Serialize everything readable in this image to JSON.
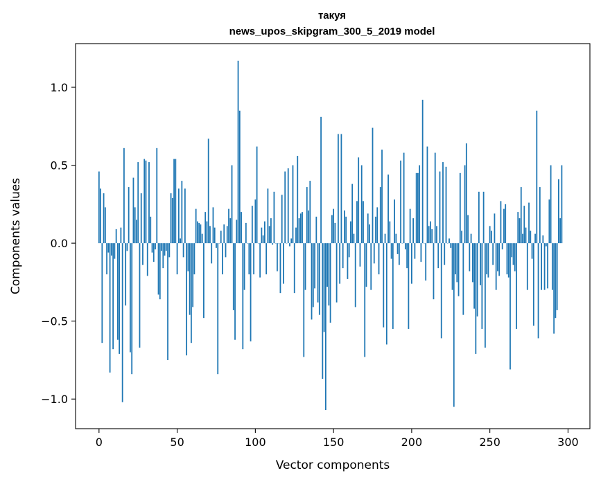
{
  "chart_data": {
    "type": "bar",
    "title": [
      "такуя",
      "news_upos_skipgram_300_5_2019 model"
    ],
    "xlabel": "Vector components",
    "ylabel": "Components values",
    "xlim": [
      -15,
      314
    ],
    "ylim": [
      -1.19,
      1.28
    ],
    "xticks": [
      0,
      50,
      100,
      150,
      200,
      250,
      300
    ],
    "xtick_labels": [
      "0",
      "50",
      "100",
      "150",
      "200",
      "250",
      "300"
    ],
    "yticks": [
      -1.0,
      -0.5,
      0.0,
      0.5,
      1.0
    ],
    "ytick_labels": [
      "−1.0",
      "−0.5",
      "0.0",
      "0.5",
      "1.0"
    ],
    "bar_color": "#1f77b4",
    "grid": false,
    "values": [
      0.46,
      0.35,
      -0.64,
      0.32,
      0.23,
      -0.2,
      -0.06,
      -0.83,
      -0.08,
      -0.68,
      -0.1,
      0.09,
      -0.62,
      -0.71,
      0.1,
      -1.02,
      0.61,
      -0.4,
      -0.05,
      0.36,
      -0.7,
      -0.84,
      0.42,
      0.23,
      0.15,
      0.52,
      -0.67,
      0.32,
      -0.14,
      0.54,
      0.53,
      -0.21,
      0.52,
      0.17,
      -0.06,
      -0.12,
      -0.04,
      0.61,
      -0.33,
      -0.36,
      -0.05,
      -0.16,
      -0.08,
      -0.05,
      -0.75,
      -0.09,
      0.32,
      0.29,
      0.54,
      0.54,
      -0.2,
      0.35,
      0.03,
      0.4,
      -0.09,
      0.35,
      -0.72,
      -0.18,
      -0.46,
      -0.64,
      -0.41,
      -0.2,
      0.22,
      0.14,
      0.13,
      0.12,
      0.06,
      -0.48,
      0.2,
      0.14,
      0.67,
      0.11,
      -0.13,
      0.23,
      0.1,
      -0.03,
      -0.84,
      0.0,
      0.08,
      -0.2,
      0.12,
      -0.09,
      0.11,
      0.22,
      0.16,
      0.5,
      -0.43,
      -0.62,
      0.15,
      1.17,
      0.85,
      0.2,
      -0.68,
      -0.3,
      0.13,
      0.0,
      -0.2,
      -0.63,
      0.24,
      -0.2,
      0.28,
      0.62,
      0.0,
      -0.22,
      0.1,
      0.05,
      0.14,
      -0.2,
      0.35,
      0.11,
      0.16,
      -0.01,
      0.33,
      0.0,
      -0.18,
      0.0,
      -0.32,
      0.31,
      -0.26,
      0.46,
      0.0,
      0.48,
      -0.02,
      0.03,
      0.5,
      -0.32,
      0.1,
      0.56,
      0.16,
      0.19,
      0.2,
      -0.73,
      -0.3,
      0.36,
      0.21,
      0.4,
      -0.49,
      -0.41,
      -0.29,
      0.17,
      -0.38,
      -0.46,
      0.81,
      -0.87,
      -0.57,
      -1.07,
      -0.28,
      -0.4,
      -0.51,
      0.18,
      0.22,
      0.13,
      -0.38,
      0.7,
      -0.26,
      0.7,
      -0.16,
      0.21,
      0.17,
      -0.23,
      -0.09,
      0.14,
      0.38,
      0.06,
      -0.41,
      0.27,
      0.55,
      -0.15,
      0.5,
      0.27,
      -0.73,
      -0.28,
      0.19,
      0.12,
      -0.3,
      0.74,
      -0.13,
      0.17,
      0.23,
      -0.2,
      0.36,
      0.6,
      -0.54,
      0.06,
      -0.65,
      0.44,
      0.14,
      -0.1,
      -0.55,
      0.28,
      0.06,
      -0.07,
      -0.14,
      0.53,
      0.0,
      0.58,
      -0.04,
      -0.16,
      -0.55,
      0.22,
      -0.26,
      0.16,
      -0.1,
      0.45,
      0.45,
      0.5,
      -0.12,
      0.92,
      0.0,
      -0.24,
      0.62,
      0.11,
      0.14,
      0.09,
      -0.36,
      0.58,
      0.11,
      -0.16,
      0.46,
      -0.61,
      0.52,
      -0.14,
      0.49,
      0.0,
      0.03,
      -0.03,
      -0.3,
      -1.05,
      -0.2,
      -0.25,
      -0.34,
      0.45,
      0.08,
      -0.46,
      0.5,
      0.64,
      0.18,
      -0.18,
      0.06,
      -0.25,
      -0.42,
      -0.71,
      -0.47,
      0.33,
      -0.27,
      -0.55,
      0.33,
      -0.67,
      -0.2,
      -0.22,
      0.11,
      0.08,
      -0.14,
      0.19,
      -0.3,
      -0.18,
      -0.21,
      0.27,
      -0.04,
      0.22,
      0.25,
      -0.2,
      -0.22,
      -0.81,
      -0.09,
      -0.14,
      -0.18,
      -0.55,
      0.2,
      0.16,
      0.36,
      0.06,
      0.24,
      0.1,
      -0.3,
      0.26,
      0.08,
      -0.1,
      -0.53,
      0.06,
      0.85,
      -0.61,
      0.36,
      -0.3,
      0.05,
      -0.3,
      -0.02,
      -0.29,
      0.28,
      0.5,
      -0.3,
      -0.58,
      -0.48,
      -0.43,
      0.41,
      0.16,
      0.5
    ]
  }
}
